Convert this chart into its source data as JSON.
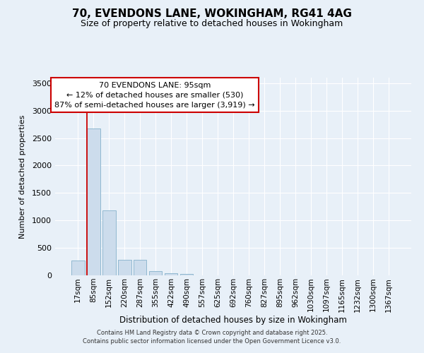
{
  "title_line1": "70, EVENDONS LANE, WOKINGHAM, RG41 4AG",
  "title_line2": "Size of property relative to detached houses in Wokingham",
  "xlabel": "Distribution of detached houses by size in Wokingham",
  "ylabel": "Number of detached properties",
  "bar_labels": [
    "17sqm",
    "85sqm",
    "152sqm",
    "220sqm",
    "287sqm",
    "355sqm",
    "422sqm",
    "490sqm",
    "557sqm",
    "625sqm",
    "692sqm",
    "760sqm",
    "827sqm",
    "895sqm",
    "962sqm",
    "1030sqm",
    "1097sqm",
    "1165sqm",
    "1232sqm",
    "1300sqm",
    "1367sqm"
  ],
  "bar_heights": [
    270,
    2680,
    1180,
    280,
    280,
    75,
    40,
    30,
    0,
    0,
    0,
    0,
    0,
    0,
    0,
    0,
    0,
    0,
    0,
    0,
    0
  ],
  "bar_color": "#ccdcec",
  "bar_edge_color": "#90b8d0",
  "background_color": "#e8f0f8",
  "grid_color": "#ffffff",
  "red_line_bin_index": 1,
  "annotation_line1": "70 EVENDONS LANE: 95sqm",
  "annotation_line2": "← 12% of detached houses are smaller (530)",
  "annotation_line3": "87% of semi-detached houses are larger (3,919) →",
  "annotation_box_facecolor": "#ffffff",
  "annotation_box_edgecolor": "#cc0000",
  "red_line_color": "#cc0000",
  "ylim": [
    0,
    3600
  ],
  "yticks": [
    0,
    500,
    1000,
    1500,
    2000,
    2500,
    3000,
    3500
  ],
  "footer_line1": "Contains HM Land Registry data © Crown copyright and database right 2025.",
  "footer_line2": "Contains public sector information licensed under the Open Government Licence v3.0."
}
